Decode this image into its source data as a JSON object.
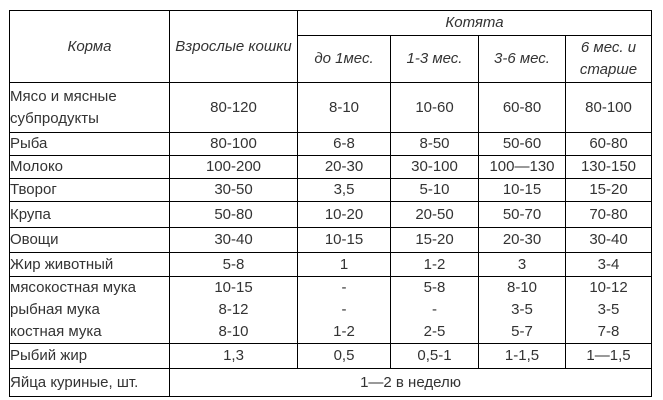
{
  "table": {
    "header": {
      "feed_col": "Корма",
      "adult_col": "Взрослые кошки",
      "kittens_group": "Котята",
      "kitten_cols": [
        "до 1мес.",
        "1-3 мес.",
        "3-6 мес.",
        "6 мес. и старше"
      ]
    },
    "rows": [
      {
        "feed": [
          "Мясо и мясные субпродукты"
        ],
        "values": [
          "80-120",
          "8-10",
          "10-60",
          "60-80",
          "80-100"
        ]
      },
      {
        "feed": [
          "Рыба"
        ],
        "values": [
          "80-100",
          "6-8",
          "8-50",
          "50-60",
          "60-80"
        ]
      },
      {
        "feed": [
          "Молоко"
        ],
        "values": [
          "100-200",
          "20-30",
          "30-100",
          "100—130",
          "130-150"
        ]
      },
      {
        "feed": [
          "Творог"
        ],
        "values": [
          "30-50",
          "3,5",
          "5-10",
          "10-15",
          "15-20"
        ]
      },
      {
        "feed": [
          "Крупа"
        ],
        "values": [
          "50-80",
          "10-20",
          "20-50",
          "50-70",
          "70-80"
        ]
      },
      {
        "feed": [
          "Овощи"
        ],
        "values": [
          "30-40",
          "10-15",
          "15-20",
          "20-30",
          "30-40"
        ]
      },
      {
        "feed": [
          "Жир животный"
        ],
        "values": [
          "5-8",
          "1",
          "1-2",
          "3",
          "3-4"
        ]
      },
      {
        "feed": [
          "мясокостная мука",
          "рыбная мука",
          "костная мука"
        ],
        "values": [
          [
            "10-15",
            "8-12",
            "8-10"
          ],
          [
            "-",
            "-",
            "1-2"
          ],
          [
            "5-8",
            "-",
            "2-5"
          ],
          [
            "8-10",
            "3-5",
            "5-7"
          ],
          [
            "10-12",
            "3-5",
            "7-8"
          ]
        ]
      },
      {
        "feed": [
          "Рыбий жир"
        ],
        "values": [
          "1,3",
          "0,5",
          "0,5-1",
          "1-1,5",
          "1—1,5"
        ]
      },
      {
        "feed": [
          "Яйца куриные, шт."
        ],
        "merged_value": "1—2 в неделю"
      }
    ],
    "colors": {
      "border": "#000000",
      "text": "#333333",
      "background": "#ffffff"
    }
  }
}
